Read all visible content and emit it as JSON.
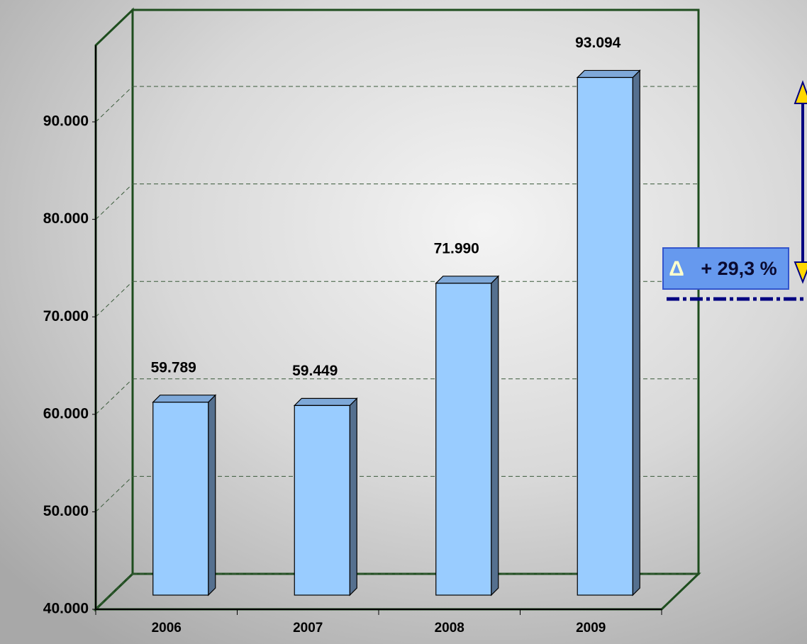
{
  "chart_data": {
    "type": "bar3d",
    "categories": [
      "2006",
      "2007",
      "2008",
      "2009"
    ],
    "values": [
      59789,
      59449,
      71990,
      93094
    ],
    "value_labels": [
      "59.789",
      "59.449",
      "71.990",
      "93.094"
    ],
    "color": "#99ccff",
    "ylim": [
      40000,
      97850
    ],
    "yticks": [
      {
        "value": 40000,
        "label": "40.000"
      },
      {
        "value": 50000,
        "label": "50.000"
      },
      {
        "value": 60000,
        "label": "60.000"
      },
      {
        "value": 70000,
        "label": "70.000"
      },
      {
        "value": 80000,
        "label": "80.000"
      },
      {
        "value": 90000,
        "label": "90.000"
      }
    ],
    "grid": true,
    "annotation": {
      "symbol": "Δ",
      "text": "+ 29,3 %"
    }
  }
}
